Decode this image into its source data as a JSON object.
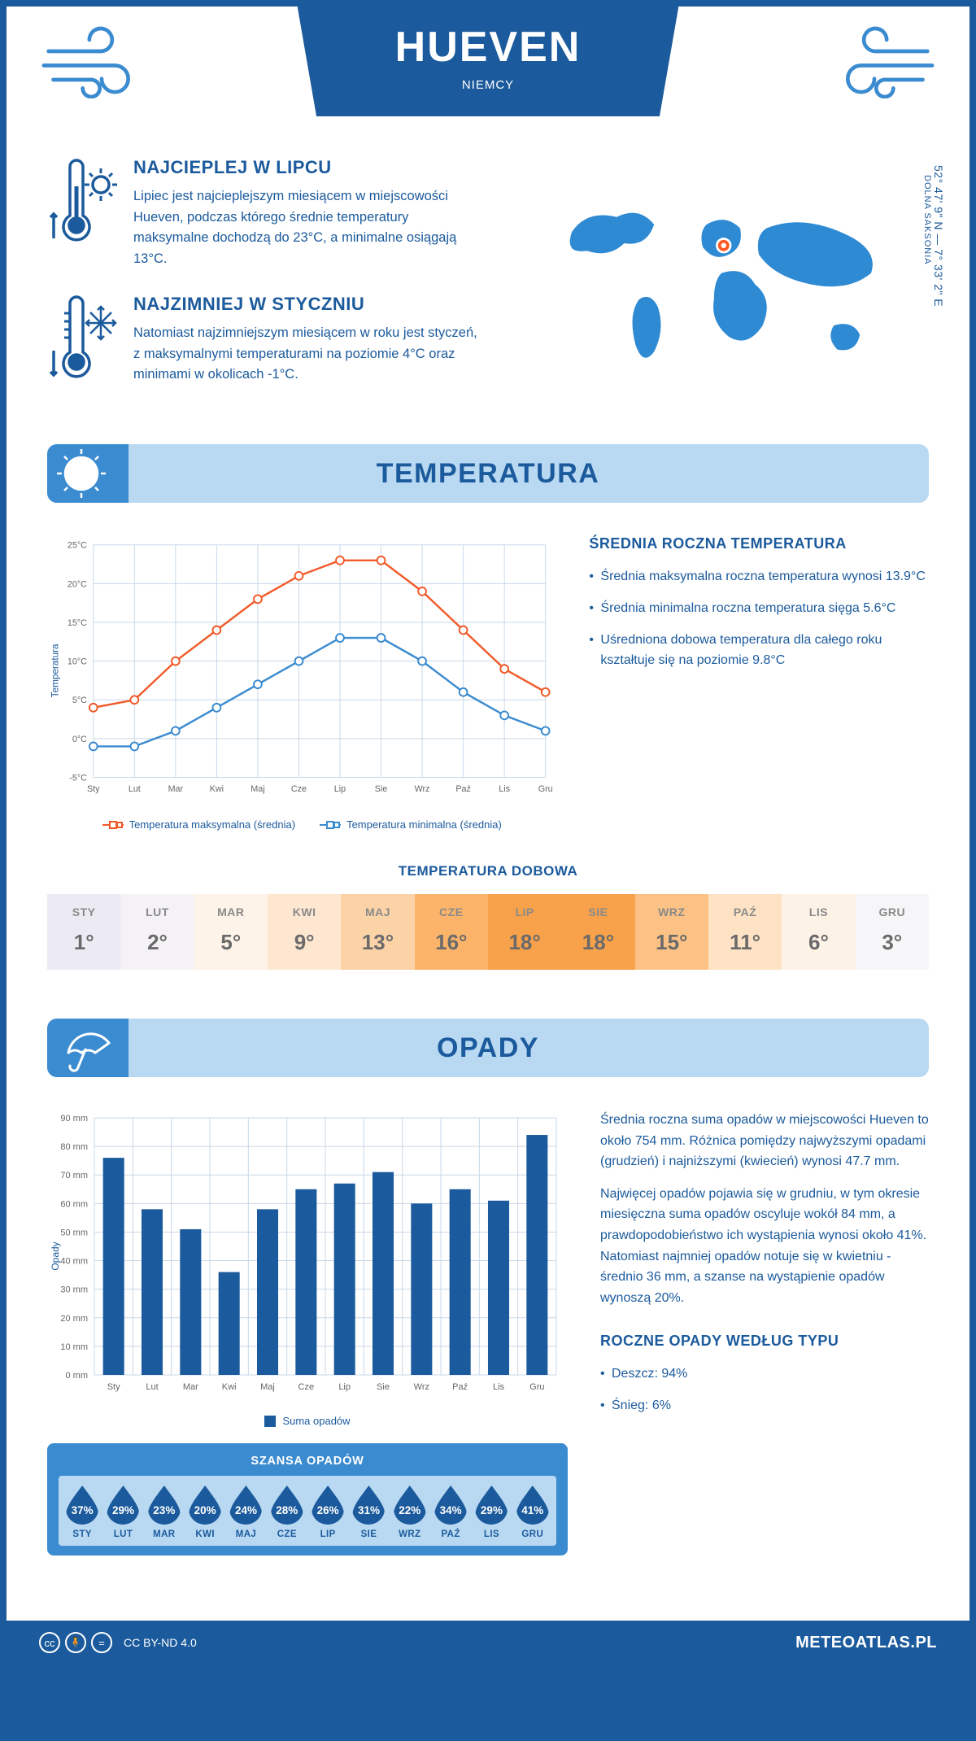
{
  "header": {
    "city": "HUEVEN",
    "country": "NIEMCY",
    "coords_main": "52° 47' 9\" N — 7° 33' 2\" E",
    "coords_region": "DOLNA SAKSONIA"
  },
  "intro": {
    "warm": {
      "title": "NAJCIEPLEJ W LIPCU",
      "body": "Lipiec jest najcieplejszym miesiącem w miejscowości Hueven, podczas którego średnie temperatury maksymalne dochodzą do 23°C, a minimalne osiągają 13°C."
    },
    "cold": {
      "title": "NAJZIMNIEJ W STYCZNIU",
      "body": "Natomiast najzimniejszym miesiącem w roku jest styczeń, z maksymalnymi temperaturami na poziomie 4°C oraz minimami w okolicach -1°C."
    }
  },
  "temperature": {
    "title": "TEMPERATURA",
    "chart": {
      "type": "line",
      "y_label": "Temperatura",
      "months": [
        "Sty",
        "Lut",
        "Mar",
        "Kwi",
        "Maj",
        "Cze",
        "Lip",
        "Sie",
        "Wrz",
        "Paź",
        "Lis",
        "Gru"
      ],
      "ylim": [
        -5,
        25
      ],
      "ytick_step": 5,
      "y_tick_labels": [
        "-5°C",
        "0°C",
        "5°C",
        "10°C",
        "15°C",
        "20°C",
        "25°C"
      ],
      "grid_color": "#c9d8e8",
      "background_color": "#ffffff",
      "series": [
        {
          "name": "Temperatura maksymalna (średnia)",
          "color": "#f15a29",
          "values": [
            4,
            5,
            10,
            14,
            18,
            21,
            23,
            23,
            19,
            14,
            9,
            6
          ]
        },
        {
          "name": "Temperatura minimalna (średnia)",
          "color": "#3b8bd0",
          "values": [
            -1,
            -1,
            1,
            4,
            7,
            10,
            13,
            13,
            10,
            6,
            3,
            1
          ]
        }
      ],
      "line_width": 2.5,
      "marker": "circle",
      "marker_size": 5
    },
    "stats": {
      "title": "ŚREDNIA ROCZNA TEMPERATURA",
      "items": [
        "Średnia maksymalna roczna temperatura wynosi 13.9°C",
        "Średnia minimalna roczna temperatura sięga 5.6°C",
        "Uśredniona dobowa temperatura dla całego roku kształtuje się na poziomie 9.8°C"
      ]
    },
    "dobowa": {
      "title": "TEMPERATURA DOBOWA",
      "months": [
        "STY",
        "LUT",
        "MAR",
        "KWI",
        "MAJ",
        "CZE",
        "LIP",
        "SIE",
        "WRZ",
        "PAŹ",
        "LIS",
        "GRU"
      ],
      "values": [
        "1°",
        "2°",
        "5°",
        "9°",
        "13°",
        "16°",
        "18°",
        "18°",
        "15°",
        "11°",
        "6°",
        "3°"
      ],
      "cell_colors": [
        "#eceaf3",
        "#f4f2f5",
        "#fdf3e8",
        "#fde7d0",
        "#fcd3a7",
        "#fbb46a",
        "#f7a14b",
        "#f7a14b",
        "#fcc285",
        "#fde2c3",
        "#fdf2e6",
        "#f6f5f7"
      ]
    }
  },
  "opady": {
    "title": "OPADY",
    "chart": {
      "type": "bar",
      "y_label": "Opady",
      "months": [
        "Sty",
        "Lut",
        "Mar",
        "Kwi",
        "Maj",
        "Cze",
        "Lip",
        "Sie",
        "Wrz",
        "Paź",
        "Lis",
        "Gru"
      ],
      "values": [
        76,
        58,
        51,
        36,
        58,
        65,
        67,
        71,
        60,
        65,
        61,
        84
      ],
      "ylim": [
        0,
        90
      ],
      "ytick_step": 10,
      "y_tick_labels": [
        "0 mm",
        "10 mm",
        "20 mm",
        "30 mm",
        "40 mm",
        "50 mm",
        "60 mm",
        "70 mm",
        "80 mm",
        "90 mm"
      ],
      "bar_color": "#1b5a9c",
      "grid_color": "#c9d8e8",
      "bar_width": 0.55,
      "legend_label": "Suma opadów"
    },
    "desc": {
      "p1": "Średnia roczna suma opadów w miejscowości Hueven to około 754 mm. Różnica pomiędzy najwyższymi opadami (grudzień) i najniższymi (kwiecień) wynosi 47.7 mm.",
      "p2": "Najwięcej opadów pojawia się w grudniu, w tym okresie miesięczna suma opadów oscyluje wokół 84 mm, a prawdopodobieństwo ich wystąpienia wynosi około 41%. Natomiast najmniej opadów notuje się w kwietniu - średnio 36 mm, a szanse na wystąpienie opadów wynoszą 20%."
    },
    "chance": {
      "title": "SZANSA OPADÓW",
      "months": [
        "STY",
        "LUT",
        "MAR",
        "KWI",
        "MAJ",
        "CZE",
        "LIP",
        "SIE",
        "WRZ",
        "PAŹ",
        "LIS",
        "GRU"
      ],
      "values": [
        "37%",
        "29%",
        "23%",
        "20%",
        "24%",
        "28%",
        "26%",
        "31%",
        "22%",
        "34%",
        "29%",
        "41%"
      ],
      "drop_color": "#1b5a9c"
    },
    "types": {
      "title": "ROCZNE OPADY WEDŁUG TYPU",
      "items": [
        "Deszcz: 94%",
        "Śnieg: 6%"
      ]
    }
  },
  "footer": {
    "license": "CC BY-ND 4.0",
    "brand": "METEOATLAS.PL"
  }
}
